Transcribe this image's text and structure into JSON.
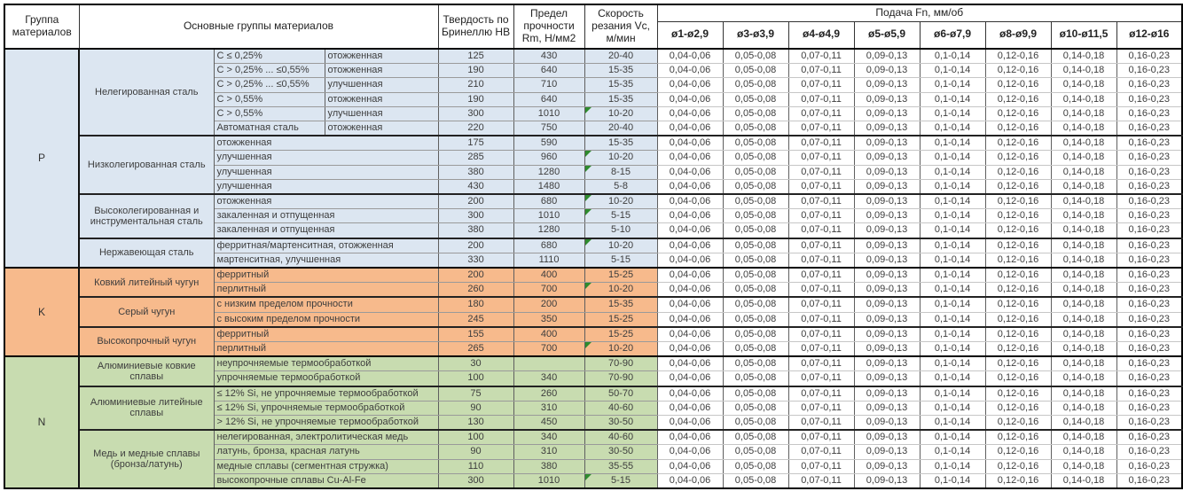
{
  "colors": {
    "group_p_bg": "#DCE6F1",
    "group_k_bg": "#F7BA8C",
    "group_n_bg": "#C8DCB0",
    "feed_bg": "#FFFFFF",
    "marker_green": "#2E8B2E"
  },
  "table": {
    "header": {
      "group_col": "Группа материалов",
      "main_col": "Основные группы материалов",
      "hardness_col": "Твердость по Бринеллю HB",
      "strength_col": "Предел прочности Rm, Н/мм2",
      "speed_col": "Скорость резания Vc, м/мин",
      "feed_col": "Подача Fn, мм/об",
      "diameter_cols": [
        "ø1-ø2,9",
        "ø3-ø3,9",
        "ø4-ø4,9",
        "ø5-ø5,9",
        "ø6-ø7,9",
        "ø8-ø9,9",
        "ø10-ø11,5",
        "ø12-ø16"
      ]
    },
    "feed_values_all_rows": [
      "0,04-0,06",
      "0,05-0,08",
      "0,07-0,11",
      "0,09-0,13",
      "0,1-0,14",
      "0,12-0,16",
      "0,14-0,18",
      "0,16-0,23"
    ],
    "groups": [
      {
        "code": "P",
        "color": "#DCE6F1",
        "subgroups": [
          {
            "name": "Нелегированная сталь",
            "rows": [
              {
                "d1": "C ≤ 0,25%",
                "d2": "отожженная",
                "hb": "125",
                "rm": "430",
                "vc": "20-40",
                "marker": false
              },
              {
                "d1": "C > 0,25% ... ≤0,55%",
                "d2": "отожженная",
                "hb": "190",
                "rm": "640",
                "vc": "15-35",
                "marker": false
              },
              {
                "d1": "C > 0,25% ... ≤0,55%",
                "d2": "улучшенная",
                "hb": "210",
                "rm": "710",
                "vc": "15-35",
                "marker": false
              },
              {
                "d1": "C > 0,55%",
                "d2": "отожженная",
                "hb": "190",
                "rm": "640",
                "vc": "15-35",
                "marker": false
              },
              {
                "d1": "C > 0,55%",
                "d2": "улучшенная",
                "hb": "300",
                "rm": "1010",
                "vc": "10-20",
                "marker": true
              },
              {
                "d1": "Автоматная сталь",
                "d2": "отожженная",
                "hb": "220",
                "rm": "750",
                "vc": "20-40",
                "marker": false
              }
            ]
          },
          {
            "name": "Низколегированная сталь",
            "rows": [
              {
                "d": "отожженная",
                "hb": "175",
                "rm": "590",
                "vc": "15-35",
                "marker": false
              },
              {
                "d": "улучшенная",
                "hb": "285",
                "rm": "960",
                "vc": "10-20",
                "marker": true
              },
              {
                "d": "улучшенная",
                "hb": "380",
                "rm": "1280",
                "vc": "8-15",
                "marker": true
              },
              {
                "d": "улучшенная",
                "hb": "430",
                "rm": "1480",
                "vc": "5-8",
                "marker": false
              }
            ]
          },
          {
            "name": "Высоколегированная и инструментальная сталь",
            "rows": [
              {
                "d": "отожженная",
                "hb": "200",
                "rm": "680",
                "vc": "10-20",
                "marker": true
              },
              {
                "d": "закаленная и отпущенная",
                "hb": "300",
                "rm": "1010",
                "vc": "5-15",
                "marker": true
              },
              {
                "d": "закаленная и отпущенная",
                "hb": "380",
                "rm": "1280",
                "vc": "5-10",
                "marker": false
              }
            ]
          },
          {
            "name": "Нержавеющая сталь",
            "rows": [
              {
                "d": "ферритная/мартенситная, отожженная",
                "hb": "200",
                "rm": "680",
                "vc": "10-20",
                "marker": true
              },
              {
                "d": "мартенситная, улучшенная",
                "hb": "330",
                "rm": "1110",
                "vc": "5-15",
                "marker": false
              }
            ]
          }
        ]
      },
      {
        "code": "K",
        "color": "#F7BA8C",
        "subgroups": [
          {
            "name": "Ковкий литейный чугун",
            "rows": [
              {
                "d": "ферритный",
                "hb": "200",
                "rm": "400",
                "vc": "15-25",
                "marker": false
              },
              {
                "d": "перлитный",
                "hb": "260",
                "rm": "700",
                "vc": "10-20",
                "marker": true
              }
            ]
          },
          {
            "name": "Серый чугун",
            "rows": [
              {
                "d": "с низким пределом прочности",
                "hb": "180",
                "rm": "200",
                "vc": "15-35",
                "marker": false
              },
              {
                "d": "с высоким пределом прочности",
                "hb": "245",
                "rm": "350",
                "vc": "15-25",
                "marker": false
              }
            ]
          },
          {
            "name": "Высокопрочный чугун",
            "rows": [
              {
                "d": "ферритный",
                "hb": "155",
                "rm": "400",
                "vc": "15-25",
                "marker": false
              },
              {
                "d": "перлитный",
                "hb": "265",
                "rm": "700",
                "vc": "10-20",
                "marker": true
              }
            ]
          }
        ]
      },
      {
        "code": "N",
        "color": "#C8DCB0",
        "subgroups": [
          {
            "name": "Алюминиевые ковкие сплавы",
            "rows": [
              {
                "d": "неупрочняемые термообработкой",
                "hb": "30",
                "rm": "",
                "vc": "70-90",
                "marker": false
              },
              {
                "d": "упрочняемые термообработкой",
                "hb": "100",
                "rm": "340",
                "vc": "70-90",
                "marker": false
              }
            ]
          },
          {
            "name": "Алюминиевые литейные сплавы",
            "rows": [
              {
                "d": "≤ 12% Si, не упрочняемые термообработкой",
                "hb": "75",
                "rm": "260",
                "vc": "50-70",
                "marker": false
              },
              {
                "d": "≤ 12% Si, упрочняемые термообработкой",
                "hb": "90",
                "rm": "310",
                "vc": "40-60",
                "marker": false
              },
              {
                "d": "> 12% Si, не упрочняемые термообработкой",
                "hb": "130",
                "rm": "450",
                "vc": "30-50",
                "marker": false
              }
            ]
          },
          {
            "name": "Медь и медные сплавы (бронза/латунь)",
            "rows": [
              {
                "d": "нелегированная, электролитическая медь",
                "hb": "100",
                "rm": "340",
                "vc": "40-60",
                "marker": false
              },
              {
                "d": "латунь, бронза, красная латунь",
                "hb": "90",
                "rm": "310",
                "vc": "30-50",
                "marker": false
              },
              {
                "d": "медные сплавы (сегментная стружка)",
                "hb": "110",
                "rm": "380",
                "vc": "35-55",
                "marker": false
              },
              {
                "d": "высокопрочные сплавы Cu-Al-Fe",
                "hb": "300",
                "rm": "1010",
                "vc": "5-15",
                "marker": true
              }
            ]
          }
        ]
      }
    ]
  }
}
